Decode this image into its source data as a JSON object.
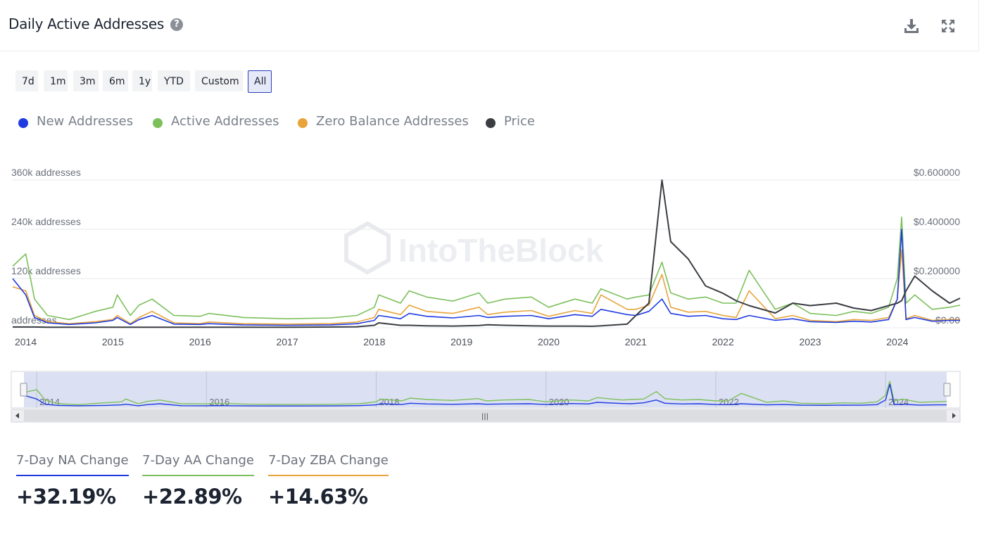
{
  "header": {
    "title": "Daily Active Addresses",
    "help_icon": "question-circle-icon",
    "download_icon": "download-icon",
    "expand_icon": "expand-icon"
  },
  "range_buttons": [
    "7d",
    "1m",
    "3m",
    "6m",
    "1y",
    "YTD",
    "Custom",
    "All"
  ],
  "active_range": "All",
  "legend": [
    {
      "label": "New Addresses",
      "color": "#1f3ae0"
    },
    {
      "label": "Active Addresses",
      "color": "#7cc05c"
    },
    {
      "label": "Zero Balance Addresses",
      "color": "#e8a43a"
    },
    {
      "label": "Price",
      "color": "#3a3d42"
    }
  ],
  "chart_data": {
    "type": "line",
    "title": "Daily Active Addresses",
    "watermark": "IntoTheBlock",
    "x": [
      2013.85,
      2014.0,
      2014.1,
      2014.25,
      2014.5,
      2014.8,
      2015.0,
      2015.05,
      2015.2,
      2015.3,
      2015.45,
      2015.7,
      2016.0,
      2016.1,
      2016.5,
      2017.0,
      2017.5,
      2017.8,
      2018.0,
      2018.05,
      2018.3,
      2018.4,
      2018.6,
      2018.9,
      2019.2,
      2019.3,
      2019.5,
      2019.8,
      2020.0,
      2020.3,
      2020.5,
      2020.6,
      2020.9,
      2021.0,
      2021.15,
      2021.3,
      2021.4,
      2021.6,
      2021.8,
      2022.0,
      2022.15,
      2022.3,
      2022.6,
      2022.8,
      2023.0,
      2023.3,
      2023.5,
      2023.7,
      2023.9,
      2024.0,
      2024.05,
      2024.1,
      2024.2,
      2024.4,
      2024.6,
      2024.72
    ],
    "y_axis_left": {
      "ticks": [
        "360k addresses",
        "240k addresses",
        "120k addresses",
        "addresses"
      ],
      "range": [
        0,
        360000
      ]
    },
    "y_axis_right": {
      "ticks": [
        "$0.600000",
        "$0.400000",
        "$0.200000",
        "$0.00"
      ],
      "range": [
        0,
        0.6
      ]
    },
    "x_ticks": [
      "2014",
      "2015",
      "2016",
      "2017",
      "2018",
      "2019",
      "2020",
      "2021",
      "2022",
      "2023",
      "2024"
    ],
    "series": [
      {
        "name": "Active Addresses",
        "color": "#7cc05c",
        "axis": "left",
        "values": [
          150000,
          180000,
          70000,
          30000,
          20000,
          40000,
          50000,
          80000,
          30000,
          55000,
          70000,
          30000,
          28000,
          35000,
          25000,
          22000,
          24000,
          30000,
          50000,
          80000,
          60000,
          90000,
          75000,
          65000,
          85000,
          60000,
          70000,
          75000,
          50000,
          70000,
          60000,
          95000,
          70000,
          75000,
          80000,
          160000,
          85000,
          70000,
          75000,
          60000,
          60000,
          140000,
          45000,
          60000,
          35000,
          30000,
          40000,
          35000,
          50000,
          120000,
          270000,
          60000,
          80000,
          45000,
          50000,
          55000
        ]
      },
      {
        "name": "Zero Balance Addresses",
        "color": "#e8a43a",
        "axis": "left",
        "values": [
          100000,
          90000,
          30000,
          15000,
          10000,
          15000,
          20000,
          30000,
          10000,
          25000,
          40000,
          12000,
          10000,
          14000,
          10000,
          9000,
          10000,
          14000,
          25000,
          45000,
          32000,
          55000,
          40000,
          35000,
          50000,
          32000,
          38000,
          42000,
          28000,
          42000,
          35000,
          80000,
          45000,
          45000,
          55000,
          130000,
          50000,
          38000,
          40000,
          30000,
          25000,
          90000,
          22000,
          30000,
          18000,
          15000,
          20000,
          18000,
          25000,
          70000,
          190000,
          22000,
          30000,
          18000,
          20000,
          20000
        ]
      },
      {
        "name": "New Addresses",
        "color": "#1f3ae0",
        "axis": "left",
        "values": [
          120000,
          80000,
          25000,
          12000,
          8000,
          12000,
          18000,
          25000,
          8000,
          20000,
          30000,
          9000,
          8000,
          10000,
          7000,
          6000,
          7000,
          10000,
          18000,
          30000,
          22000,
          35000,
          28000,
          24000,
          30000,
          25000,
          28000,
          30000,
          22000,
          32000,
          28000,
          45000,
          32000,
          30000,
          40000,
          70000,
          35000,
          28000,
          30000,
          22000,
          20000,
          30000,
          18000,
          22000,
          15000,
          13000,
          16000,
          14000,
          20000,
          70000,
          240000,
          20000,
          25000,
          16000,
          18000,
          18000
        ]
      },
      {
        "name": "Price",
        "color": "#3a3d42",
        "axis": "right",
        "values": [
          0.003,
          0.003,
          0.003,
          0.002,
          0.002,
          0.002,
          0.002,
          0.002,
          0.002,
          0.002,
          0.002,
          0.002,
          0.002,
          0.002,
          0.002,
          0.002,
          0.003,
          0.004,
          0.01,
          0.02,
          0.01,
          0.01,
          0.008,
          0.007,
          0.009,
          0.012,
          0.01,
          0.008,
          0.007,
          0.007,
          0.006,
          0.008,
          0.015,
          0.05,
          0.1,
          0.6,
          0.35,
          0.28,
          0.17,
          0.14,
          0.11,
          0.09,
          0.06,
          0.1,
          0.09,
          0.1,
          0.08,
          0.07,
          0.09,
          0.1,
          0.11,
          0.15,
          0.21,
          0.15,
          0.1,
          0.12
        ]
      }
    ]
  },
  "navigator": {
    "x_ticks": [
      "2014",
      "2016",
      "2018",
      "2020",
      "2022",
      "2024"
    ],
    "handle_icon": "scroll-grip-icon"
  },
  "stats": [
    {
      "label": "7-Day NA Change",
      "value": "+32.19%",
      "color": "#1f3ae0"
    },
    {
      "label": "7-Day AA Change",
      "value": "+22.89%",
      "color": "#7cc05c"
    },
    {
      "label": "7-Day ZBA Change",
      "value": "+14.63%",
      "color": "#e8a43a"
    }
  ]
}
